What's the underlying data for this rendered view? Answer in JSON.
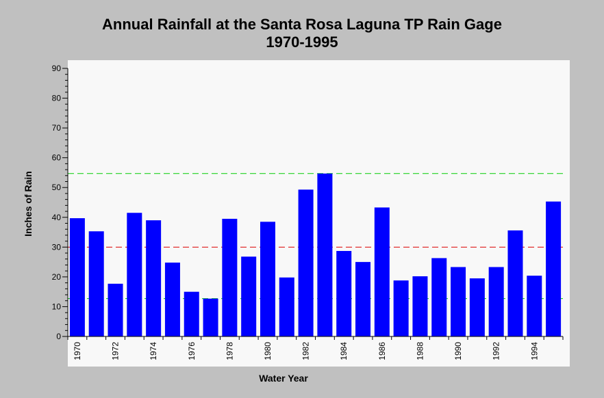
{
  "chart_data": {
    "type": "bar",
    "title": "Annual Rainfall at the Santa Rosa Laguna TP Rain Gage",
    "subtitle": "1970-1995",
    "xlabel": "Water Year",
    "ylabel": "Inches of Rain",
    "ylim": [
      0,
      90
    ],
    "yticks": [
      "0",
      "10",
      "20",
      "30",
      "40",
      "50",
      "60",
      "70",
      "80",
      "90"
    ],
    "categories": [
      "1970",
      "1971",
      "1972",
      "1973",
      "1974",
      "1975",
      "1976",
      "1977",
      "1978",
      "1979",
      "1980",
      "1981",
      "1982",
      "1983",
      "1984",
      "1985",
      "1986",
      "1987",
      "1988",
      "1989",
      "1990",
      "1991",
      "1992",
      "1993",
      "1994",
      "1995"
    ],
    "xtick_labels": [
      "1970",
      "1972",
      "1974",
      "1976",
      "1978",
      "1980",
      "1982",
      "1984",
      "1986",
      "1988",
      "1990",
      "1992",
      "1994"
    ],
    "values": [
      39.7,
      35.3,
      17.7,
      41.5,
      39.0,
      24.8,
      15.0,
      12.7,
      39.5,
      26.8,
      38.5,
      19.8,
      49.3,
      54.7,
      28.7,
      25.0,
      43.3,
      18.8,
      20.2,
      26.3,
      23.3,
      19.5,
      23.3,
      35.6,
      20.4,
      45.3
    ],
    "reference_lines": [
      {
        "value": 54.7,
        "color": "#00cc00"
      },
      {
        "value": 30.0,
        "color": "#dd0000"
      },
      {
        "value": 12.7,
        "color": "#00cc00"
      }
    ],
    "bar_color": "#0000ff",
    "plot_background": "#f8f8f8",
    "grid": false
  }
}
